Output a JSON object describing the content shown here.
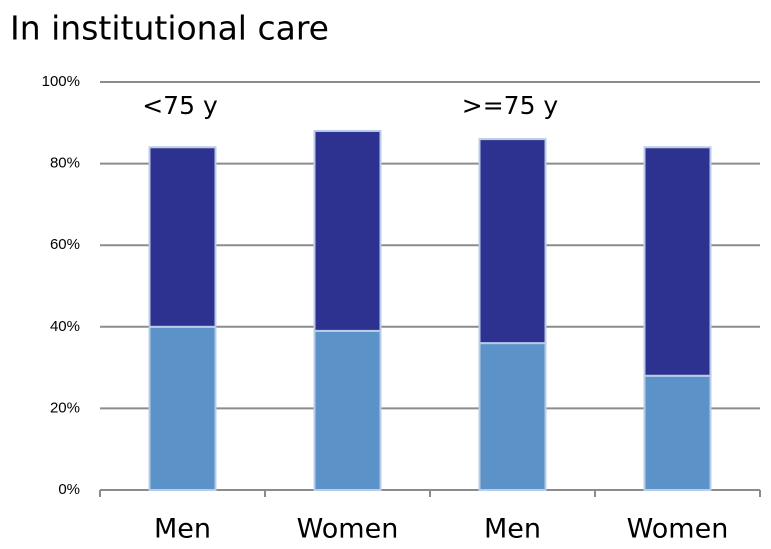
{
  "chart_data": {
    "type": "stacked_bar",
    "title": "In institutional care",
    "categories": [
      "Men",
      "Women",
      "Men",
      "Women"
    ],
    "series": [
      {
        "color": "#5b93c8",
        "values": [
          40,
          39,
          36,
          28
        ]
      },
      {
        "color": "#2d3190",
        "values": [
          44,
          49,
          50,
          56
        ]
      }
    ],
    "annotations": [
      "<75 y",
      ">=75 y"
    ],
    "ylim": [
      0,
      100
    ],
    "yticks": [
      {
        "value": 0,
        "label": "0%"
      },
      {
        "value": 20,
        "label": "20%"
      },
      {
        "value": 40,
        "label": "40%"
      },
      {
        "value": 60,
        "label": "60%"
      },
      {
        "value": 80,
        "label": "80%"
      },
      {
        "value": 100,
        "label": "100%"
      }
    ],
    "grid": true
  }
}
